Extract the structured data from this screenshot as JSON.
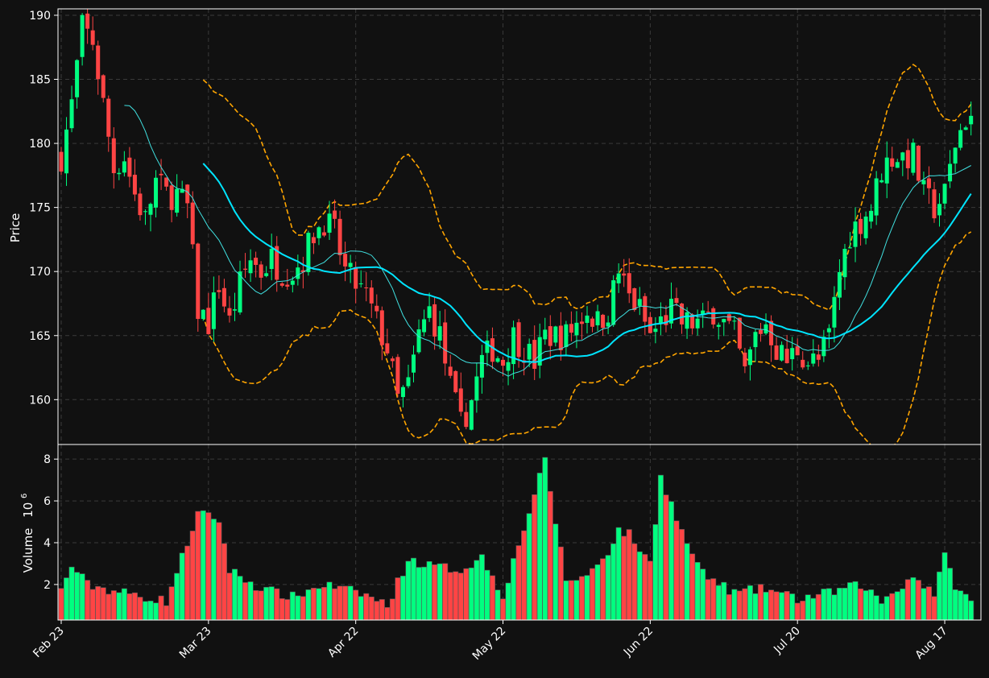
{
  "chart_data": {
    "type": "candlestick",
    "panels": {
      "price": {
        "ylabel": "Price",
        "ylim": [
          156.5,
          190.5
        ],
        "yticks": [
          160,
          165,
          170,
          175,
          180,
          185,
          190
        ]
      },
      "volume": {
        "ylabel": "Volume",
        "ylabel_exponent": "10",
        "ylabel_exponent_power": "6",
        "ylim": [
          0.3,
          8.7
        ],
        "yticks": [
          2,
          4,
          6,
          8
        ]
      }
    },
    "x_tick_labels": [
      {
        "index": 0,
        "label": "Feb 23"
      },
      {
        "index": 28,
        "label": "Mar 23"
      },
      {
        "index": 56,
        "label": "Apr 22"
      },
      {
        "index": 84,
        "label": "May 22"
      },
      {
        "index": 112,
        "label": "Jun 22"
      },
      {
        "index": 140,
        "label": "Jul 20"
      },
      {
        "index": 168,
        "label": "Aug 17"
      }
    ],
    "grid": true,
    "colors": {
      "background": "#111111",
      "up": "#00ff80",
      "down": "#ff4444",
      "grid": "#3a3a3a",
      "ma_fast": "#40e0e0",
      "ma_slow": "#00e5ff",
      "bands": "#ffa500",
      "spine": "#ffffff"
    },
    "series_overlays": [
      "ma_fast",
      "ma_slow",
      "upper_band",
      "lower_band"
    ],
    "ohlcv_waypoints": [
      [
        0,
        179
      ],
      [
        2,
        183
      ],
      [
        4,
        189
      ],
      [
        6,
        188
      ],
      [
        8,
        183
      ],
      [
        10,
        178
      ],
      [
        12,
        179
      ],
      [
        14,
        176
      ],
      [
        16,
        174
      ],
      [
        18,
        177
      ],
      [
        20,
        176
      ],
      [
        22,
        176
      ],
      [
        24,
        175
      ],
      [
        26,
        167
      ],
      [
        28,
        166
      ],
      [
        30,
        169
      ],
      [
        32,
        166
      ],
      [
        34,
        169
      ],
      [
        36,
        171
      ],
      [
        38,
        170
      ],
      [
        40,
        171
      ],
      [
        42,
        170
      ],
      [
        44,
        170
      ],
      [
        46,
        171
      ],
      [
        48,
        173
      ],
      [
        50,
        174
      ],
      [
        52,
        173
      ],
      [
        54,
        170
      ],
      [
        56,
        169
      ],
      [
        58,
        168
      ],
      [
        60,
        166
      ],
      [
        62,
        164
      ],
      [
        64,
        160
      ],
      [
        66,
        161
      ],
      [
        68,
        165
      ],
      [
        70,
        167
      ],
      [
        72,
        165
      ],
      [
        74,
        161
      ],
      [
        76,
        158
      ],
      [
        78,
        160
      ],
      [
        80,
        163
      ],
      [
        82,
        164
      ],
      [
        84,
        163
      ],
      [
        86,
        165
      ],
      [
        88,
        164
      ],
      [
        90,
        163
      ],
      [
        92,
        165
      ],
      [
        94,
        165
      ],
      [
        96,
        165
      ],
      [
        98,
        166
      ],
      [
        100,
        167
      ],
      [
        102,
        166
      ],
      [
        104,
        167
      ],
      [
        106,
        170
      ],
      [
        108,
        168
      ],
      [
        110,
        167
      ],
      [
        112,
        165
      ],
      [
        114,
        166
      ],
      [
        116,
        167
      ],
      [
        118,
        166
      ],
      [
        120,
        166
      ],
      [
        122,
        166
      ],
      [
        124,
        167
      ],
      [
        126,
        166
      ],
      [
        128,
        165
      ],
      [
        130,
        162
      ],
      [
        132,
        165
      ],
      [
        134,
        166
      ],
      [
        136,
        164
      ],
      [
        138,
        163
      ],
      [
        140,
        164
      ],
      [
        142,
        163
      ],
      [
        144,
        163
      ],
      [
        146,
        165
      ],
      [
        148,
        170
      ],
      [
        150,
        173
      ],
      [
        152,
        174
      ],
      [
        154,
        175
      ],
      [
        156,
        178
      ],
      [
        158,
        179
      ],
      [
        160,
        179
      ],
      [
        162,
        179
      ],
      [
        164,
        176
      ],
      [
        166,
        175
      ],
      [
        168,
        176
      ],
      [
        170,
        180
      ],
      [
        172,
        182
      ],
      [
        173,
        182
      ]
    ],
    "volume_waypoints": [
      [
        0,
        1.7
      ],
      [
        2,
        2.9
      ],
      [
        5,
        2.0
      ],
      [
        10,
        1.7
      ],
      [
        20,
        1.2
      ],
      [
        26,
        5.4
      ],
      [
        30,
        5.1
      ],
      [
        32,
        2.7
      ],
      [
        38,
        1.8
      ],
      [
        44,
        1.4
      ],
      [
        50,
        2.0
      ],
      [
        58,
        1.5
      ],
      [
        62,
        1.0
      ],
      [
        66,
        3.2
      ],
      [
        70,
        2.9
      ],
      [
        76,
        2.7
      ],
      [
        80,
        3.3
      ],
      [
        84,
        1.5
      ],
      [
        92,
        7.9
      ],
      [
        96,
        2.2
      ],
      [
        100,
        2.4
      ],
      [
        104,
        3.6
      ],
      [
        106,
        4.6
      ],
      [
        108,
        4.4
      ],
      [
        112,
        3.0
      ],
      [
        114,
        7.2
      ],
      [
        118,
        4.5
      ],
      [
        122,
        2.5
      ],
      [
        128,
        1.6
      ],
      [
        134,
        1.8
      ],
      [
        140,
        1.3
      ],
      [
        146,
        1.6
      ],
      [
        152,
        2.0
      ],
      [
        156,
        1.2
      ],
      [
        162,
        2.4
      ],
      [
        166,
        1.6
      ],
      [
        168,
        3.3
      ],
      [
        170,
        2.0
      ],
      [
        173,
        1.1
      ]
    ]
  }
}
